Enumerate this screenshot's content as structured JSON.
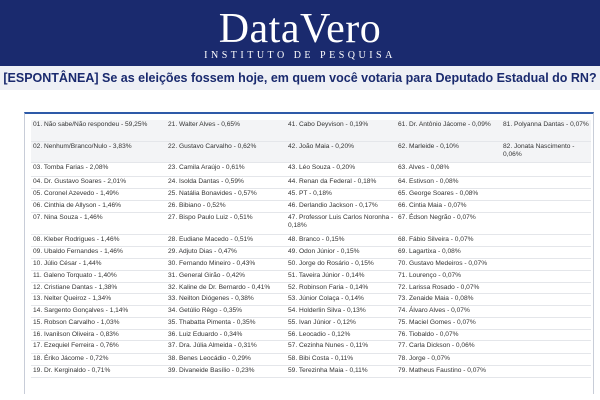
{
  "header": {
    "logo": "DataVero",
    "tagline": "INSTITUTO DE PESQUISA"
  },
  "question": "[ESPONTÂNEA] Se as eleições fossem hoje, em quem você votaria para Deputado Estadual do RN?",
  "table": {
    "rows": [
      [
        "01. Não sabe/Não respondeu - 59,25%",
        "21. Walter Alves - 0,65%",
        "41. Cabo Deyvison - 0,19%",
        "61. Dr. Antônio Jácome - 0,09%",
        "81. Polyanna Dantas - 0,07%"
      ],
      [
        "02. Nenhum/Branco/Nulo - 3,83%",
        "22. Gustavo Carvalho - 0,62%",
        "42. João Maia - 0,20%",
        "62. Marleide - 0,10%",
        "82. Jonata Nascimento - 0,06%"
      ],
      [
        "03. Tomba Farias - 2,08%",
        "23. Camila Araújo - 0,61%",
        "43. Léo Souza - 0,20%",
        "63. Alves - 0,08%",
        null
      ],
      [
        "04. Dr. Gustavo Soares - 2,01%",
        "24. Isolda Dantas - 0,59%",
        "44. Renan da Federal - 0,18%",
        "64. Estivson - 0,08%",
        null
      ],
      [
        "05. Coronel Azevedo - 1,49%",
        "25. Natália Bonavides - 0,57%",
        "45. PT - 0,18%",
        "65. George Soares - 0,08%",
        null
      ],
      [
        "06. Cinthia de Allyson - 1,46%",
        "26. Bibiano - 0,52%",
        "46. Derlandio Jackson - 0,17%",
        "66. Cintia Maia - 0,07%",
        null
      ],
      [
        "07. Nina Souza - 1,46%",
        "27. Bispo Paulo Luiz - 0,51%",
        "47. Professor Luis Carlos Noronha - 0,18%",
        "67. Édson Negrão - 0,07%",
        null
      ],
      [
        "08. Kleber Rodrigues - 1,46%",
        "28. Eudiane Macedo - 0,51%",
        "48. Branco - 0,15%",
        "68. Fábio Silveira - 0,07%",
        null
      ],
      [
        "09. Ubaldo Fernandes - 1,46%",
        "29. Adjuto Dias - 0,47%",
        "49. Odon Júnior - 0,15%",
        "69. Lagartixa - 0,08%",
        null
      ],
      [
        "10. Júlio César - 1,44%",
        "30. Fernando Mineiro - 0,43%",
        "50. Jorge do Rosário - 0,15%",
        "70. Gustavo Medeiros - 0,07%",
        null
      ],
      [
        "11. Galeno Torquato - 1,40%",
        "31. General Girão - 0,42%",
        "51. Taveira Júnior - 0,14%",
        "71. Lourenço - 0,07%",
        null
      ],
      [
        "12. Cristiane Dantas - 1,38%",
        "32. Kaline de Dr. Bernardo - 0,41%",
        "52. Robinson Faria - 0,14%",
        "72. Larissa Rosado - 0,07%",
        null
      ],
      [
        "13. Nelter Queiroz - 1,34%",
        "33. Neilton Diógenes - 0,38%",
        "53. Júnior Colaça - 0,14%",
        "73. Zenaide Maia - 0,08%",
        null
      ],
      [
        "14. Sargento Gonçalves - 1,14%",
        "34. Getúlio Rêgo - 0,35%",
        "54. Holderlin Silva - 0,13%",
        "74. Álvaro Alves - 0,07%",
        null
      ],
      [
        "15. Robson Carvalho - 1,03%",
        "35. Thabatta Pimenta - 0,35%",
        "55. Ivan Júnior - 0,12%",
        "75. Maciel Gomes - 0,07%",
        null
      ],
      [
        "16. Ivanilson Oliveira - 0,83%",
        "36. Luiz Eduardo - 0,34%",
        "56. Leocadio - 0,12%",
        "76. Tiobaldo - 0,07%",
        null
      ],
      [
        "17. Ezequiel Ferreira - 0,76%",
        "37. Dra. Júlia Almeida - 0,31%",
        "57. Cezinha Nunes - 0,11%",
        "77. Carla Dickson - 0,06%",
        null
      ],
      [
        "18. Ériko Jácome - 0,72%",
        "38. Benes Leocádio - 0,29%",
        "58. Bibi Costa - 0,11%",
        "78. Jorge - 0,07%",
        null
      ],
      [
        "19. Dr. Kerginaldo - 0,71%",
        "39. Divaneide Basílio - 0,23%",
        "59. Terezinha Maia - 0,11%",
        "79. Matheus Faustino - 0,07%",
        null
      ]
    ]
  }
}
